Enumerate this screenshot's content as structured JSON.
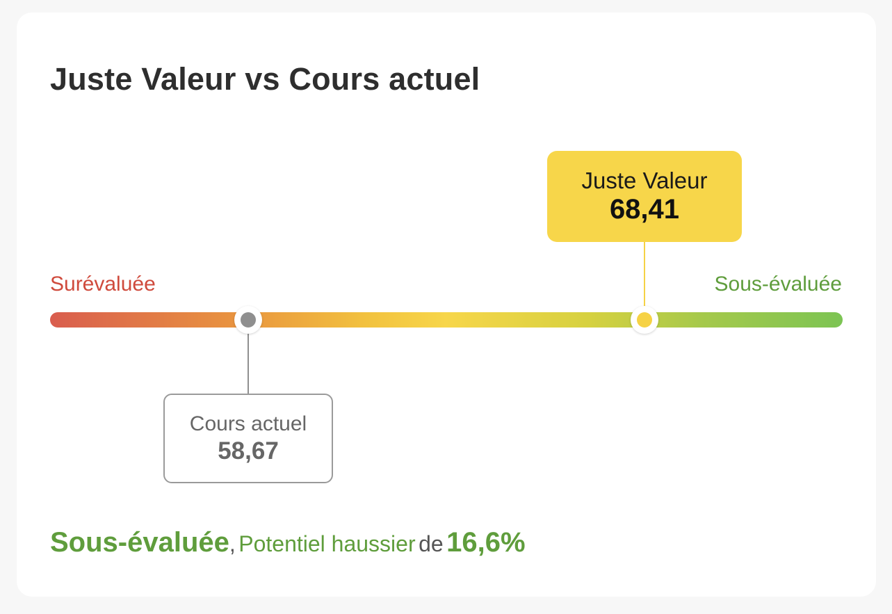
{
  "card": {
    "title": "Juste Valeur vs Cours actuel"
  },
  "scale": {
    "left_label": "Surévaluée",
    "right_label": "Sous-évaluée",
    "colors": {
      "overvalued": "#d95d4e",
      "mid": "#f7d64a",
      "undervalued": "#7cc453"
    }
  },
  "fair_value": {
    "label": "Juste Valeur",
    "value": "68,41",
    "position_fraction": 0.75,
    "color": "#f7d64a"
  },
  "current_price": {
    "label": "Cours actuel",
    "value": "58,67",
    "position_fraction": 0.25,
    "color": "#8f8f8f"
  },
  "summary": {
    "verdict": "Sous-évaluée",
    "separator": ",",
    "phrase": "Potentiel haussier",
    "connector": "de",
    "percent": "16,6%",
    "accent_color": "#5f9d3c"
  }
}
